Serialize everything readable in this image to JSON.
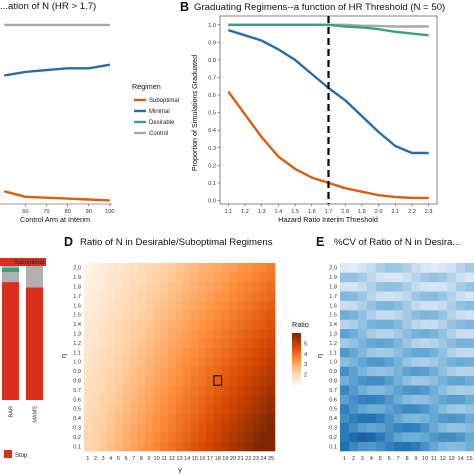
{
  "panels": {
    "A": {
      "title": "...ation of N (HR > 1.7)",
      "xlabel": "Control Arm at Interim",
      "xticks": [
        "60",
        "70",
        "80",
        "90",
        "100"
      ]
    },
    "B": {
      "letter": "B",
      "title": "Graduating Regimens--a function of HR Threshold (N = 50)",
      "ylabel": "Proportion of Simulations Graduated",
      "xlabel": "Hazard Ratio Interim Threshold"
    },
    "C": {
      "header": "Suboptimal",
      "xticks": [
        "BAR",
        "MAMS"
      ],
      "legend_label": "Stop"
    },
    "D": {
      "letter": "D",
      "title": "Ratio of N in Desirable/Suboptimal Regimens",
      "xlabel": "γ",
      "ylabel": "η",
      "legend_title": "Ratio",
      "legend_ticks": [
        "5",
        "4",
        "3",
        "2"
      ]
    },
    "E": {
      "letter": "E",
      "title": "%CV of Ratio of N in Desira...",
      "ylabel": "η"
    }
  },
  "legend": {
    "title": "Regimen",
    "items": [
      {
        "label": "Suboptimal",
        "color": "#d95f0e"
      },
      {
        "label": "Minimal",
        "color": "#2b6ca3"
      },
      {
        "label": "Desirable",
        "color": "#3aa27a"
      },
      {
        "label": "Control",
        "color": "#a8a8a8"
      }
    ]
  },
  "chart_data": [
    {
      "type": "line",
      "panel": "A",
      "xlabel": "Control Arm at Interim",
      "x": [
        50,
        60,
        70,
        80,
        90,
        100
      ],
      "xlim": [
        48,
        101
      ],
      "ylim": [
        0,
        1.05
      ],
      "series": [
        {
          "name": "Control",
          "color": "#a8a8a8",
          "values": [
            0.99,
            0.99,
            0.99,
            0.99,
            0.99,
            0.99
          ]
        },
        {
          "name": "Minimal",
          "color": "#2b6ca3",
          "values": [
            0.71,
            0.73,
            0.74,
            0.75,
            0.75,
            0.77
          ]
        },
        {
          "name": "Suboptimal",
          "color": "#d95f0e",
          "values": [
            0.07,
            0.04,
            0.035,
            0.03,
            0.025,
            0.02
          ]
        }
      ]
    },
    {
      "type": "line",
      "panel": "B",
      "title": "Graduating Regimens--a function of HR Threshold (N = 50)",
      "xlabel": "Hazard Ratio Interim Threshold",
      "ylabel": "Proportion of Simulations Graduated",
      "x": [
        1.1,
        1.2,
        1.3,
        1.4,
        1.5,
        1.6,
        1.7,
        1.8,
        1.9,
        2.0,
        2.1,
        2.2,
        2.3
      ],
      "xticks": [
        "1.1",
        "1.2",
        "1.3",
        "1.4",
        "1.5",
        "1.6",
        "1.7",
        "1.8",
        "1.9",
        "2.0",
        "2.1",
        "2.2",
        "2.3"
      ],
      "yticks": [
        "0.0",
        "0.1",
        "0.2",
        "0.3",
        "0.4",
        "0.5",
        "0.6",
        "0.7",
        "0.8",
        "0.9",
        "1.0"
      ],
      "xlim": [
        1.05,
        2.35
      ],
      "ylim": [
        -0.02,
        1.05
      ],
      "threshold": 1.7,
      "series": [
        {
          "name": "Control",
          "color": "#a8a8a8",
          "values": [
            1.0,
            1.0,
            1.0,
            1.0,
            1.0,
            1.0,
            1.0,
            1.0,
            0.995,
            0.993,
            0.99,
            0.99,
            0.99
          ]
        },
        {
          "name": "Desirable",
          "color": "#3aa27a",
          "values": [
            1.0,
            1.0,
            1.0,
            1.0,
            1.0,
            1.0,
            1.0,
            0.99,
            0.985,
            0.975,
            0.96,
            0.95,
            0.94
          ]
        },
        {
          "name": "Minimal",
          "color": "#2b6ca3",
          "values": [
            0.97,
            0.94,
            0.91,
            0.86,
            0.8,
            0.72,
            0.64,
            0.57,
            0.48,
            0.39,
            0.31,
            0.27,
            0.27
          ]
        },
        {
          "name": "Suboptimal",
          "color": "#d95f0e",
          "values": [
            0.62,
            0.49,
            0.36,
            0.25,
            0.18,
            0.13,
            0.1,
            0.07,
            0.05,
            0.03,
            0.02,
            0.015,
            0.015
          ]
        }
      ]
    },
    {
      "type": "bar",
      "panel": "C",
      "categories": [
        "BAR",
        "MAMS"
      ],
      "series": [
        {
          "name": "Stop",
          "color": "#d7301f",
          "values": [
            0.88,
            0.84
          ]
        }
      ]
    },
    {
      "type": "heatmap",
      "panel": "D",
      "title": "Ratio of N in Desirable/Suboptimal Regimens",
      "xlabel": "γ",
      "ylabel": "η",
      "x": [
        1,
        2,
        3,
        4,
        5,
        6,
        7,
        8,
        9,
        10,
        11,
        12,
        13,
        14,
        15,
        16,
        17,
        18,
        19,
        20,
        21,
        22,
        23,
        24,
        25
      ],
      "y": [
        0.1,
        0.2,
        0.3,
        0.4,
        0.5,
        0.6,
        0.7,
        0.8,
        0.9,
        1.0,
        1.1,
        1.2,
        1.3,
        1.4,
        1.5,
        1.6,
        1.7,
        1.8,
        1.9,
        2.0
      ],
      "yticks": [
        "0.1",
        "0.2",
        "0.3",
        "0.4",
        "0.5",
        "0.6",
        "0.7",
        "0.8",
        "0.9",
        "1.0",
        "1.1",
        "1.2",
        "1.3",
        "1.4",
        "1.5",
        "1.6",
        "1.7",
        "1.8",
        "1.9",
        "2.0"
      ],
      "value_range": [
        1,
        6
      ],
      "highlight": {
        "x": 18,
        "y": 0.8
      },
      "colors": [
        "#fff5eb",
        "#fdd0a2",
        "#fd8d3c",
        "#d94801",
        "#7f2704"
      ]
    },
    {
      "type": "heatmap",
      "panel": "E",
      "title": "%CV of Ratio of N in Desira...",
      "ylabel": "η",
      "x": [
        1,
        2,
        3,
        4,
        5,
        6,
        7,
        8,
        9,
        10,
        11,
        12,
        13,
        14,
        15
      ],
      "y": [
        0.1,
        0.2,
        0.3,
        0.4,
        0.5,
        0.6,
        0.7,
        0.8,
        0.9,
        1.0,
        1.1,
        1.2,
        1.3,
        1.4,
        1.5,
        1.6,
        1.7,
        1.8,
        1.9,
        2.0
      ],
      "yticks": [
        "0.1",
        "0.2",
        "0.3",
        "0.4",
        "0.5",
        "0.6",
        "0.7",
        "0.8",
        "0.9",
        "1.0",
        "1.1",
        "1.2",
        "1.3",
        "1.4",
        "1.5",
        "1.6",
        "1.7",
        "1.8",
        "1.9",
        "2.0"
      ],
      "colors": [
        "#f7fbff",
        "#c6dbef",
        "#6baed6",
        "#2171b5",
        "#08306b"
      ]
    }
  ]
}
